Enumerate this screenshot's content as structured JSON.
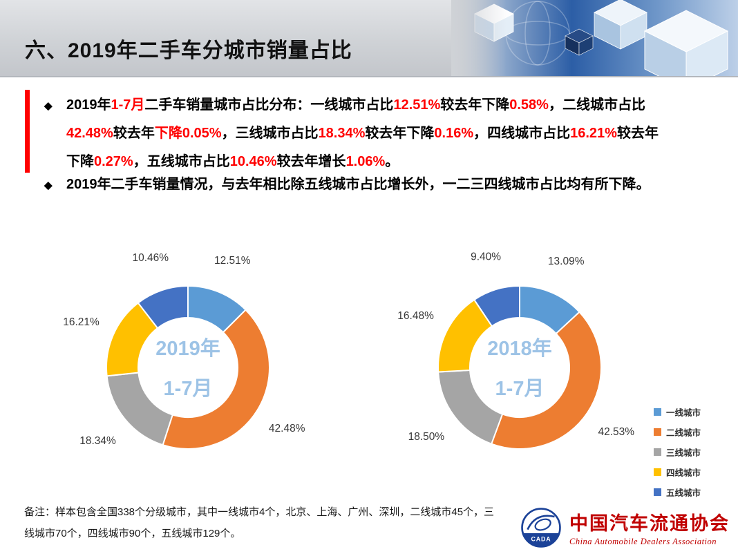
{
  "page": {
    "title": "六、2019年二手车分城市销量占比"
  },
  "bullets": {
    "marker": "◆",
    "highlight_color": "#FF0000",
    "accent_bar_color": "#FF0000",
    "items": [
      {
        "segments": [
          {
            "t": "2019年",
            "red": false
          },
          {
            "t": "1-7月",
            "red": true
          },
          {
            "t": "二手车销量城市占比分布：一线城市占比",
            "red": false
          },
          {
            "t": "12.51%",
            "red": true
          },
          {
            "t": "较去年下降",
            "red": false
          },
          {
            "t": "0.58%",
            "red": true
          },
          {
            "t": "，二线城市占比",
            "red": false
          },
          {
            "t": "42.48%",
            "red": true
          },
          {
            "t": "较去年",
            "red": false
          },
          {
            "t": "下降0.05%",
            "red": true
          },
          {
            "t": "，三线城市占比",
            "red": false
          },
          {
            "t": "18.34%",
            "red": true
          },
          {
            "t": "较去年下降",
            "red": false
          },
          {
            "t": "0.16%",
            "red": true
          },
          {
            "t": "，四线城市占比",
            "red": false
          },
          {
            "t": "16.21%",
            "red": true
          },
          {
            "t": "较去年下降",
            "red": false
          },
          {
            "t": "0.27%",
            "red": true
          },
          {
            "t": "，五线城市占比",
            "red": false
          },
          {
            "t": "10.46%",
            "red": true
          },
          {
            "t": "较去年增长",
            "red": false
          },
          {
            "t": "1.06%",
            "red": true
          },
          {
            "t": "。",
            "red": false
          }
        ]
      },
      {
        "segments": [
          {
            "t": "2019年二手车销量情况，与去年相比除五线城市占比增长外，一二三四线城市占比均有所下降。",
            "red": false
          }
        ]
      }
    ]
  },
  "chart_data": [
    {
      "type": "pie",
      "subtype": "donut",
      "title": "2019年1-7月",
      "center_lines": [
        "2019年",
        "1-7月"
      ],
      "center_label_color": "#9DC3E6",
      "categories": [
        "一线城市",
        "二线城市",
        "三线城市",
        "四线城市",
        "五线城市"
      ],
      "values": [
        12.51,
        42.48,
        18.34,
        16.21,
        10.46
      ],
      "labels": [
        "12.51%",
        "42.48%",
        "18.34%",
        "16.21%",
        "10.46%"
      ],
      "colors": [
        "#5B9BD5",
        "#ED7D31",
        "#A5A5A5",
        "#FFC000",
        "#4472C4"
      ],
      "start_angle_deg": 0,
      "direction": "clockwise",
      "legend_position": "right"
    },
    {
      "type": "pie",
      "subtype": "donut",
      "title": "2018年1-7月",
      "center_lines": [
        "2018年",
        "1-7月"
      ],
      "center_label_color": "#9DC3E6",
      "categories": [
        "一线城市",
        "二线城市",
        "三线城市",
        "四线城市",
        "五线城市"
      ],
      "values": [
        13.09,
        42.53,
        18.5,
        16.48,
        9.4
      ],
      "labels": [
        "13.09%",
        "42.53%",
        "18.50%",
        "16.48%",
        "9.40%"
      ],
      "colors": [
        "#5B9BD5",
        "#ED7D31",
        "#A5A5A5",
        "#FFC000",
        "#4472C4"
      ],
      "start_angle_deg": 0,
      "direction": "clockwise",
      "legend_position": "right"
    }
  ],
  "legend": {
    "position": "right",
    "items": [
      {
        "label": "一线城市",
        "color": "#5B9BD5"
      },
      {
        "label": "二线城市",
        "color": "#ED7D31"
      },
      {
        "label": "三线城市",
        "color": "#A5A5A5"
      },
      {
        "label": "四线城市",
        "color": "#FFC000"
      },
      {
        "label": "五线城市",
        "color": "#4472C4"
      }
    ]
  },
  "note": "备注：样本包含全国338个分级城市，其中一线城市4个，北京、上海、广州、深圳，二线城市45个，三线城市70个，四线城市90个，五线城市129个。",
  "logo": {
    "acronym": "CADA",
    "name_cn": "中国汽车流通协会",
    "name_en": "China Automobile Dealers Association"
  }
}
